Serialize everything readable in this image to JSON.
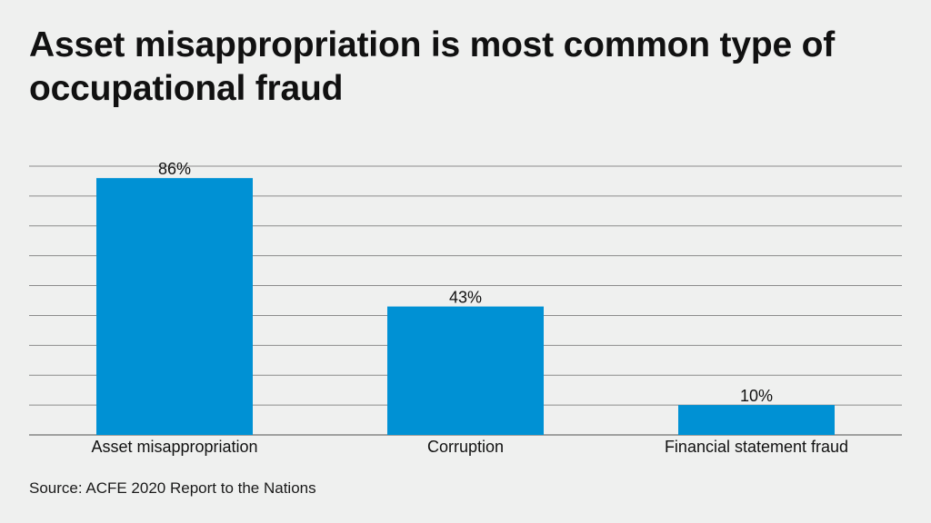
{
  "chart_data": {
    "type": "bar",
    "title": "Asset misappropriation is most common type of occupational fraud",
    "categories": [
      "Asset misappropriation",
      "Corruption",
      "Financial statement fraud"
    ],
    "values": [
      86,
      43,
      10
    ],
    "value_labels": [
      "86%",
      "43%",
      "10%"
    ],
    "ylim": [
      0,
      90
    ],
    "grid": true,
    "bar_color": "#0091d4",
    "source": "Source: ACFE 2020 Report to the Nations"
  }
}
